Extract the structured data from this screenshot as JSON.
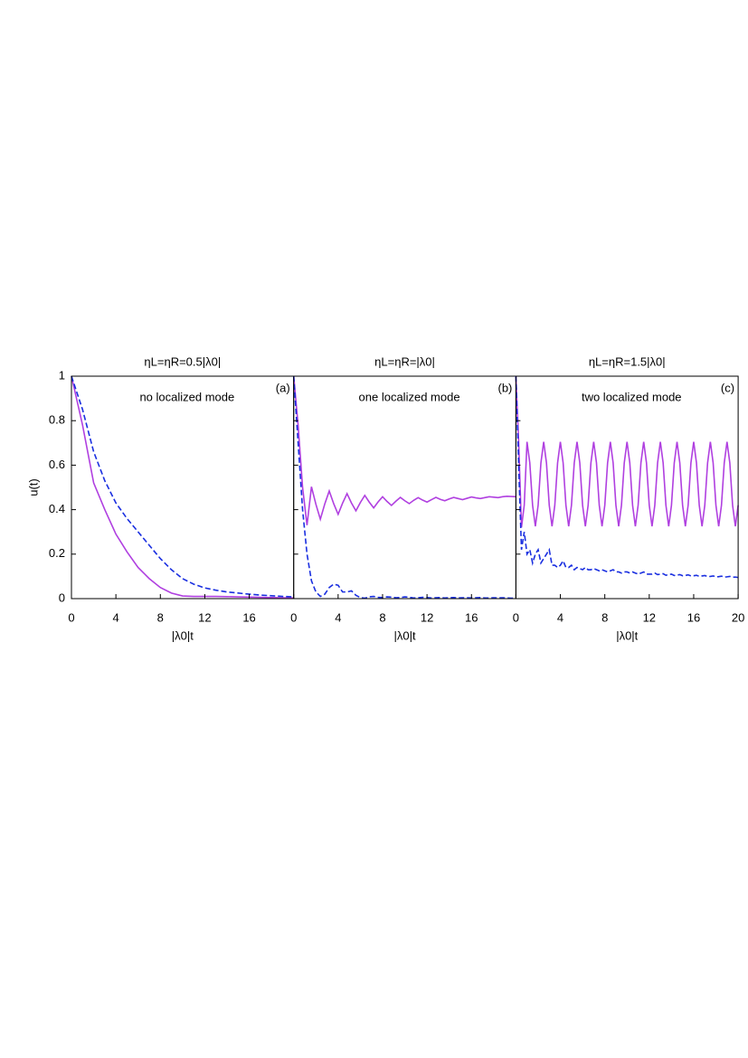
{
  "chart_data": [
    {
      "type": "line",
      "title": "ηL=ηR=0.5|λ0|",
      "annotation": "no localized mode",
      "panel_label": "(a)",
      "xlabel": "|λ0|t",
      "ylabel": "u(t)",
      "xlim": [
        0,
        20
      ],
      "ylim": [
        0,
        1
      ],
      "xticks": [
        0,
        4,
        8,
        12,
        16
      ],
      "yticks": [
        0,
        0.2,
        0.4,
        0.6,
        0.8,
        1
      ],
      "ytick_labels": true,
      "x": [
        0,
        1,
        2,
        3,
        4,
        5,
        6,
        7,
        8,
        9,
        10,
        11,
        12,
        13,
        14,
        15,
        16,
        17,
        18,
        19,
        20
      ],
      "series": [
        {
          "color": "#b040e0",
          "linestyle": "solid",
          "values": [
            1,
            0.78,
            0.52,
            0.4,
            0.29,
            0.21,
            0.14,
            0.09,
            0.05,
            0.025,
            0.012,
            0.01,
            0.01,
            0.01,
            0.009,
            0.008,
            0.007,
            0.006,
            0.005,
            0.004,
            0.003
          ]
        },
        {
          "color": "#1a2fe0",
          "linestyle": "dashed",
          "values": [
            1,
            0.85,
            0.66,
            0.53,
            0.43,
            0.36,
            0.3,
            0.24,
            0.18,
            0.13,
            0.09,
            0.065,
            0.048,
            0.038,
            0.03,
            0.025,
            0.02,
            0.016,
            0.013,
            0.01,
            0.008
          ]
        }
      ]
    },
    {
      "type": "line",
      "title": "ηL=ηR=|λ0|",
      "annotation": "one localized mode",
      "panel_label": "(b)",
      "xlabel": "|λ0|t",
      "xlim": [
        0,
        20
      ],
      "ylim": [
        0,
        1
      ],
      "xticks": [
        0,
        4,
        8,
        12,
        16
      ],
      "yticks": [
        0,
        0.2,
        0.4,
        0.6,
        0.8,
        1
      ],
      "ytick_labels": false,
      "x": [
        0,
        0.4,
        0.8,
        1.2,
        1.6,
        2,
        2.4,
        2.8,
        3.2,
        3.6,
        4,
        4.4,
        4.8,
        5.2,
        5.6,
        6,
        6.4,
        6.8,
        7.2,
        7.6,
        8,
        8.4,
        8.8,
        9.2,
        9.6,
        10,
        10.4,
        10.8,
        11.2,
        11.6,
        12,
        12.4,
        12.8,
        13.2,
        13.6,
        14,
        14.4,
        14.8,
        15.2,
        15.6,
        16,
        16.4,
        16.8,
        17.2,
        17.6,
        18,
        18.4,
        18.8,
        19.2,
        19.6,
        20
      ],
      "series": [
        {
          "color": "#b040e0",
          "linestyle": "solid",
          "values": [
            1,
            0.78,
            0.5,
            0.33,
            0.503,
            0.424,
            0.357,
            0.426,
            0.484,
            0.427,
            0.379,
            0.429,
            0.472,
            0.43,
            0.395,
            0.432,
            0.464,
            0.434,
            0.408,
            0.435,
            0.458,
            0.437,
            0.419,
            0.438,
            0.455,
            0.44,
            0.427,
            0.442,
            0.454,
            0.443,
            0.434,
            0.445,
            0.455,
            0.446,
            0.44,
            0.448,
            0.455,
            0.45,
            0.445,
            0.451,
            0.457,
            0.453,
            0.45,
            0.454,
            0.458,
            0.456,
            0.454,
            0.458,
            0.46,
            0.459,
            0.458
          ]
        },
        {
          "color": "#1a2fe0",
          "linestyle": "dashed",
          "values": [
            1,
            0.7,
            0.4,
            0.2,
            0.08,
            0.03,
            0.01,
            0.02,
            0.05,
            0.065,
            0.06,
            0.03,
            0.03,
            0.035,
            0.015,
            0.005,
            0.002,
            0.008,
            0.01,
            0.006,
            0.005,
            0.008,
            0.007,
            0.004,
            0.005,
            0.008,
            0.006,
            0.003,
            0.004,
            0.006,
            0.005,
            0.003,
            0.004,
            0.005,
            0.003,
            0.004,
            0.005,
            0.003,
            0.004,
            0.004,
            0.003,
            0.004,
            0.005,
            0.003,
            0.003,
            0.004,
            0.003,
            0.004,
            0.003,
            0.002,
            0.003
          ]
        }
      ]
    },
    {
      "type": "line",
      "title": "ηL=ηR=1.5|λ0|",
      "annotation": "two localized mode",
      "panel_label": "(c)",
      "xlabel": "|λ0|t",
      "xlim": [
        0,
        20
      ],
      "ylim": [
        0,
        1
      ],
      "xticks": [
        0,
        4,
        8,
        12,
        16,
        20
      ],
      "yticks": [
        0,
        0.2,
        0.4,
        0.6,
        0.8,
        1
      ],
      "ytick_labels": false,
      "x": [
        0,
        0.25,
        0.5,
        0.75,
        1,
        1.25,
        1.5,
        1.75,
        2,
        2.25,
        2.5,
        2.75,
        3,
        3.25,
        3.5,
        3.75,
        4,
        4.25,
        4.5,
        4.75,
        5,
        5.25,
        5.5,
        5.75,
        6,
        6.25,
        6.5,
        6.75,
        7,
        7.25,
        7.5,
        7.75,
        8,
        8.25,
        8.5,
        8.75,
        9,
        9.25,
        9.5,
        9.75,
        10,
        10.25,
        10.5,
        10.75,
        11,
        11.25,
        11.5,
        11.75,
        12,
        12.25,
        12.5,
        12.75,
        13,
        13.25,
        13.5,
        13.75,
        14,
        14.25,
        14.5,
        14.75,
        15,
        15.25,
        15.5,
        15.75,
        16,
        16.25,
        16.5,
        16.75,
        17,
        17.25,
        17.5,
        17.75,
        18,
        18.25,
        18.5,
        18.75,
        19,
        19.25,
        19.5,
        19.75,
        20
      ],
      "series": [
        {
          "color": "#b040e0",
          "linestyle": "solid",
          "values": [
            1,
            0.7,
            0.32,
            0.42,
            0.705,
            0.61,
            0.42,
            0.325,
            0.42,
            0.61,
            0.705,
            0.61,
            0.42,
            0.325,
            0.42,
            0.61,
            0.705,
            0.61,
            0.42,
            0.325,
            0.42,
            0.61,
            0.705,
            0.61,
            0.42,
            0.325,
            0.42,
            0.61,
            0.705,
            0.61,
            0.42,
            0.325,
            0.42,
            0.61,
            0.705,
            0.61,
            0.42,
            0.325,
            0.42,
            0.61,
            0.705,
            0.61,
            0.42,
            0.325,
            0.42,
            0.61,
            0.705,
            0.61,
            0.42,
            0.325,
            0.42,
            0.61,
            0.705,
            0.61,
            0.42,
            0.325,
            0.42,
            0.61,
            0.705,
            0.61,
            0.42,
            0.325,
            0.42,
            0.61,
            0.705,
            0.61,
            0.42,
            0.325,
            0.42,
            0.61,
            0.705,
            0.61,
            0.42,
            0.325,
            0.42,
            0.61,
            0.705,
            0.61,
            0.42,
            0.325,
            0.42
          ]
        },
        {
          "color": "#1a2fe0",
          "linestyle": "dashed",
          "values": [
            1,
            0.6,
            0.22,
            0.3,
            0.2,
            0.22,
            0.16,
            0.2,
            0.22,
            0.16,
            0.18,
            0.2,
            0.22,
            0.15,
            0.15,
            0.14,
            0.15,
            0.17,
            0.14,
            0.14,
            0.15,
            0.13,
            0.14,
            0.135,
            0.13,
            0.14,
            0.13,
            0.13,
            0.135,
            0.13,
            0.125,
            0.13,
            0.125,
            0.12,
            0.125,
            0.13,
            0.12,
            0.12,
            0.115,
            0.12,
            0.12,
            0.115,
            0.12,
            0.115,
            0.11,
            0.115,
            0.12,
            0.11,
            0.11,
            0.11,
            0.115,
            0.108,
            0.11,
            0.112,
            0.105,
            0.108,
            0.11,
            0.104,
            0.106,
            0.108,
            0.103,
            0.104,
            0.107,
            0.102,
            0.103,
            0.105,
            0.1,
            0.102,
            0.104,
            0.099,
            0.1,
            0.102,
            0.098,
            0.099,
            0.101,
            0.097,
            0.098,
            0.1,
            0.096,
            0.097,
            0.095
          ]
        }
      ]
    }
  ]
}
